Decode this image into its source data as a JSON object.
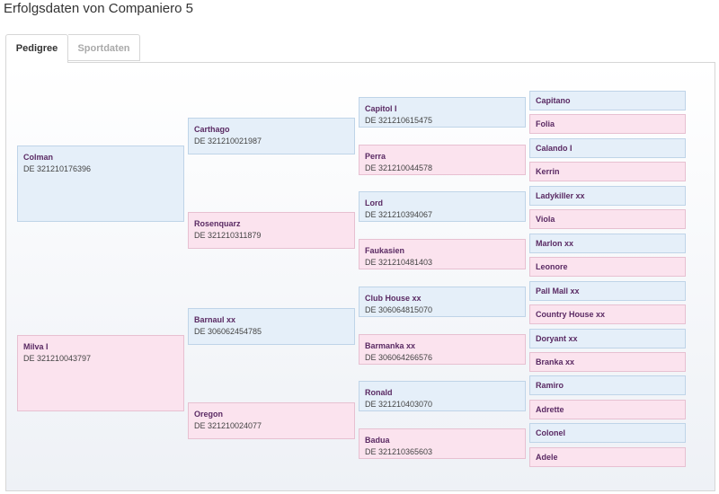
{
  "page": {
    "title": "Erfolgsdaten von Companiero 5"
  },
  "tabs": [
    {
      "label": "Pedigree",
      "active": true
    },
    {
      "label": "Sportdaten",
      "active": false
    }
  ],
  "colors": {
    "sire_bg": "#e5eff9",
    "dam_bg": "#fbe3ee",
    "name_text": "#5a2a63"
  },
  "pedigree": {
    "gen1": [
      {
        "name": "Colman",
        "reg": "DE 321210176396",
        "sex": "m"
      },
      {
        "name": "Milva I",
        "reg": "DE 321210043797",
        "sex": "f"
      }
    ],
    "gen2": [
      {
        "name": "Carthago",
        "reg": "DE 321210021987",
        "sex": "m"
      },
      {
        "name": "Rosenquarz",
        "reg": "DE 321210311879",
        "sex": "f"
      },
      {
        "name": "Barnaul xx",
        "reg": "DE 306062454785",
        "sex": "m"
      },
      {
        "name": "Oregon",
        "reg": "DE 321210024077",
        "sex": "f"
      }
    ],
    "gen3": [
      {
        "name": "Capitol I",
        "reg": "DE 321210615475",
        "sex": "m"
      },
      {
        "name": "Perra",
        "reg": "DE 321210044578",
        "sex": "f"
      },
      {
        "name": "Lord",
        "reg": "DE 321210394067",
        "sex": "m"
      },
      {
        "name": "Faukasien",
        "reg": "DE 321210481403",
        "sex": "f"
      },
      {
        "name": "Club House xx",
        "reg": "DE 306064815070",
        "sex": "m"
      },
      {
        "name": "Barmanka xx",
        "reg": "DE 306064266576",
        "sex": "f"
      },
      {
        "name": "Ronald",
        "reg": "DE 321210403070",
        "sex": "m"
      },
      {
        "name": "Badua",
        "reg": "DE 321210365603",
        "sex": "f"
      }
    ],
    "gen4": [
      {
        "name": "Capitano",
        "sex": "m"
      },
      {
        "name": "Folia",
        "sex": "f"
      },
      {
        "name": "Calando I",
        "sex": "m"
      },
      {
        "name": "Kerrin",
        "sex": "f"
      },
      {
        "name": "Ladykiller xx",
        "sex": "m"
      },
      {
        "name": "Viola",
        "sex": "f"
      },
      {
        "name": "Marlon xx",
        "sex": "m"
      },
      {
        "name": "Leonore",
        "sex": "f"
      },
      {
        "name": "Pall Mall xx",
        "sex": "m"
      },
      {
        "name": "Country House xx",
        "sex": "f"
      },
      {
        "name": "Doryant xx",
        "sex": "m"
      },
      {
        "name": "Branka xx",
        "sex": "f"
      },
      {
        "name": "Ramiro",
        "sex": "m"
      },
      {
        "name": "Adrette",
        "sex": "f"
      },
      {
        "name": "Colonel",
        "sex": "m"
      },
      {
        "name": "Adele",
        "sex": "f"
      }
    ]
  }
}
